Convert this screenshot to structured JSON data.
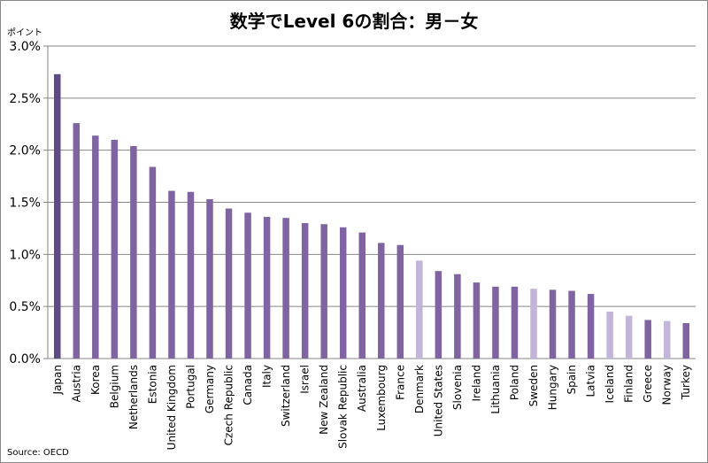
{
  "chart_data": {
    "type": "bar",
    "title": "数学でLevel 6の割合：男－女",
    "ylabel": "ポイント",
    "source": "Source: OECD",
    "ylim": [
      0,
      3.0
    ],
    "yticks": [
      "0.0%",
      "0.5%",
      "1.0%",
      "1.5%",
      "2.0%",
      "2.5%",
      "3.0%"
    ],
    "categories": [
      "Japan",
      "Austria",
      "Korea",
      "Belgium",
      "Netherlands",
      "Estonia",
      "United Kingdom",
      "Portugal",
      "Germany",
      "Czech Republic",
      "Canada",
      "Italy",
      "Switzerland",
      "Israel",
      "New Zealand",
      "Slovak Republic",
      "Australia",
      "Luxembourg",
      "France",
      "Denmark",
      "United States",
      "Slovenia",
      "Ireland",
      "Lithuania",
      "Poland",
      "Sweden",
      "Hungary",
      "Spain",
      "Latvia",
      "Iceland",
      "Finland",
      "Greece",
      "Norway",
      "Turkey"
    ],
    "values": [
      2.73,
      2.26,
      2.14,
      2.1,
      2.04,
      1.84,
      1.61,
      1.6,
      1.53,
      1.44,
      1.4,
      1.36,
      1.35,
      1.3,
      1.29,
      1.26,
      1.21,
      1.11,
      1.09,
      0.94,
      0.84,
      0.81,
      0.73,
      0.69,
      0.69,
      0.67,
      0.66,
      0.65,
      0.62,
      0.45,
      0.41,
      0.37,
      0.36,
      0.34
    ],
    "bar_styles": [
      "highlight",
      "normal",
      "normal",
      "normal",
      "normal",
      "normal",
      "normal",
      "normal",
      "normal",
      "normal",
      "normal",
      "normal",
      "normal",
      "normal",
      "normal",
      "normal",
      "normal",
      "normal",
      "normal",
      "light",
      "normal",
      "normal",
      "normal",
      "normal",
      "normal",
      "light",
      "normal",
      "normal",
      "normal",
      "light",
      "light",
      "normal",
      "light",
      "normal"
    ],
    "colors": {
      "highlight": "#5d4a86",
      "normal": "#8064a2",
      "light": "#c3b4d9",
      "grid": "#868686"
    },
    "grid": true,
    "legend": "none"
  }
}
